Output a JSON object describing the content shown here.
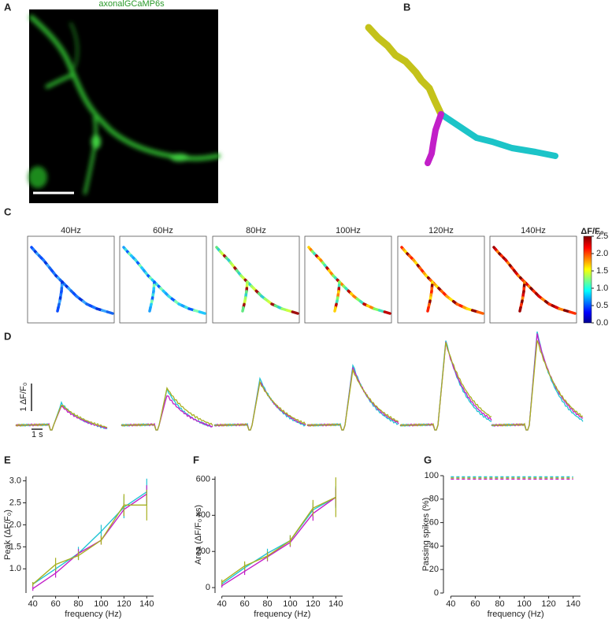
{
  "panel_labels": [
    "A",
    "B",
    "C",
    "D",
    "E",
    "F",
    "G"
  ],
  "image_a": {
    "title": "axonalGCaMP6s"
  },
  "chart_data": [
    {
      "type": "heatmap",
      "categories": [
        "40Hz",
        "60Hz",
        "80Hz",
        "100Hz",
        "120Hz",
        "140Hz"
      ],
      "clabel": "ΔF/F₀",
      "clim": [
        0,
        2.5
      ],
      "cticks": [
        {
          "value": 0,
          "label": "0.0"
        },
        0.5,
        {
          "value": 1,
          "label": "1.0"
        },
        1.5,
        {
          "value": 2,
          "label": "2.0"
        },
        2.5
      ]
    },
    {
      "type": "traces",
      "ylabel": "1 ΔF/F₀",
      "xlabel": "1 s",
      "series": [
        {
          "color": "#22c4d4",
          "values": [
            0.8,
            1.3,
            1.7,
            2.2,
            3.1,
            3.4
          ]
        },
        {
          "color": "#c21fc8",
          "values": [
            0.7,
            1.1,
            1.6,
            2.1,
            3.0,
            3.3
          ]
        },
        {
          "color": "#a8b020",
          "values": [
            0.75,
            1.35,
            1.55,
            2.0,
            3.0,
            3.1
          ]
        }
      ]
    },
    {
      "type": "line",
      "ylabel": "Peak (ΔF/F₀)",
      "xlabel": "frequency (Hz)",
      "x": [
        40,
        60,
        80,
        100,
        120,
        140
      ],
      "xlim": [
        34,
        146
      ],
      "xticks": [
        40,
        60,
        80,
        100,
        120,
        140
      ],
      "ylim": [
        0.45,
        3.1
      ],
      "yticks": [
        {
          "value": 1,
          "label": "1.0"
        },
        1.5,
        {
          "value": 2,
          "label": "2.0"
        },
        2.5,
        {
          "value": 3,
          "label": "3.0"
        }
      ],
      "series": [
        {
          "color": "#22c4d4",
          "values": [
            0.65,
            1.0,
            1.35,
            1.85,
            2.4,
            2.75
          ],
          "errors": [
            0.05,
            0.08,
            0.15,
            0.15,
            0.25,
            0.3
          ]
        },
        {
          "color": "#c21fc8",
          "values": [
            0.55,
            0.9,
            1.35,
            1.65,
            2.35,
            2.7
          ],
          "errors": [
            0.05,
            0.1,
            0.1,
            0.1,
            0.15,
            0.2
          ]
        },
        {
          "color": "#a8b020",
          "values": [
            0.65,
            1.1,
            1.3,
            1.65,
            2.45,
            2.45
          ],
          "errors": [
            0.05,
            0.15,
            0.1,
            0.1,
            0.25,
            0.35
          ]
        }
      ]
    },
    {
      "type": "line",
      "ylabel": "Area (ΔF/F₀ xs)",
      "xlabel": "frequency (Hz)",
      "x": [
        40,
        60,
        80,
        100,
        120,
        140
      ],
      "xlim": [
        34,
        146
      ],
      "xticks": [
        40,
        60,
        80,
        100,
        120,
        140
      ],
      "ylim": [
        -30,
        615
      ],
      "yticks": [
        0,
        200,
        400,
        600
      ],
      "series": [
        {
          "color": "#22c4d4",
          "values": [
            20,
            110,
            190,
            260,
            430,
            500
          ],
          "errors": [
            15,
            25,
            25,
            30,
            40,
            60
          ]
        },
        {
          "color": "#c21fc8",
          "values": [
            10,
            90,
            170,
            250,
            410,
            500
          ],
          "errors": [
            10,
            20,
            25,
            25,
            40,
            50
          ]
        },
        {
          "color": "#a8b020",
          "values": [
            30,
            120,
            175,
            260,
            440,
            500
          ],
          "errors": [
            15,
            25,
            25,
            30,
            45,
            110
          ]
        }
      ]
    },
    {
      "type": "line",
      "ylabel": "Passing spikes (%)",
      "xlabel": "frequency (Hz)",
      "linestyle": "dashed",
      "x": [
        40,
        60,
        80,
        100,
        120,
        140
      ],
      "xlim": [
        34,
        146
      ],
      "xticks": [
        40,
        60,
        80,
        100,
        120,
        140
      ],
      "ylim": [
        0,
        100
      ],
      "yticks": [
        0,
        20,
        40,
        60,
        80,
        100
      ],
      "series": [
        {
          "color": "#22c4d4",
          "values": [
            99,
            99,
            99,
            99,
            99,
            99
          ]
        },
        {
          "color": "#c21fc8",
          "values": [
            97,
            97,
            97,
            97,
            97,
            97
          ]
        },
        {
          "color": "#a8b020",
          "values": [
            98,
            98,
            98,
            98,
            98,
            98
          ]
        }
      ]
    }
  ]
}
